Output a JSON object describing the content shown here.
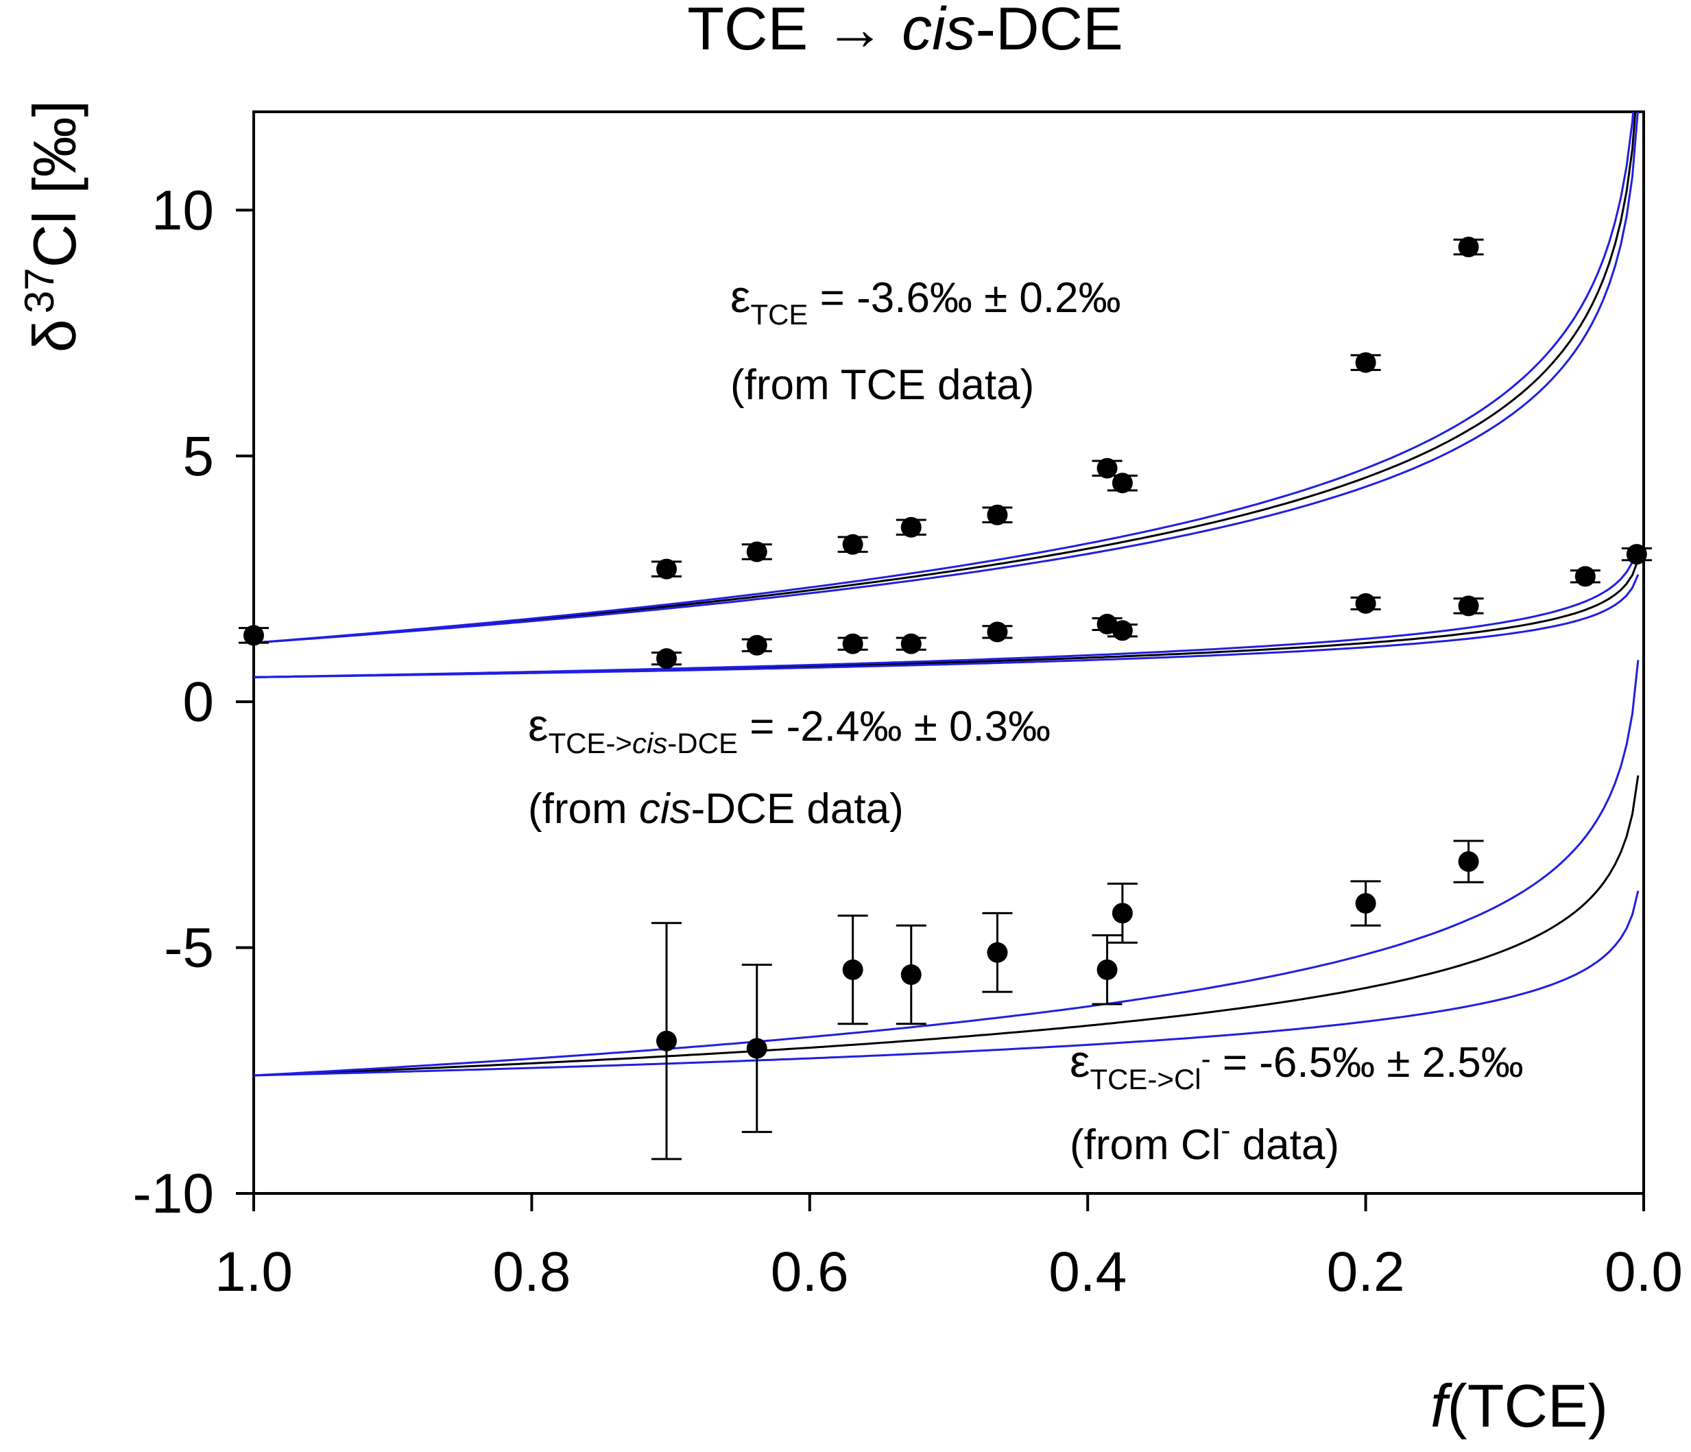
{
  "chart_data": {
    "type": "scatter",
    "title_prefix": "TCE → ",
    "title_italic": "cis",
    "title_suffix": "-DCE",
    "xlabel_italic": "f",
    "xlabel_rest": "(TCE)",
    "ylabel_delta": "δ",
    "ylabel_sup": "37",
    "ylabel_rest": "Cl [‰]",
    "xlim": [
      1.0,
      0.0
    ],
    "ylim": [
      -10,
      12
    ],
    "x_ticks": [
      1.0,
      0.8,
      0.6,
      0.4,
      0.2,
      0.0
    ],
    "x_tick_labels": [
      "1.0",
      "0.8",
      "0.6",
      "0.4",
      "0.2",
      "0.0"
    ],
    "y_ticks": [
      -10,
      -5,
      0,
      5,
      10
    ],
    "y_tick_labels": [
      "-10",
      "-5",
      "0",
      "5",
      "10"
    ],
    "series": [
      {
        "name": "TCE",
        "points": [
          {
            "x": 1.0,
            "y": 1.35,
            "err": 0.15
          },
          {
            "x": 0.703,
            "y": 2.7,
            "err": 0.15
          },
          {
            "x": 0.638,
            "y": 3.05,
            "err": 0.15
          },
          {
            "x": 0.569,
            "y": 3.2,
            "err": 0.15
          },
          {
            "x": 0.527,
            "y": 3.55,
            "err": 0.15
          },
          {
            "x": 0.465,
            "y": 3.8,
            "err": 0.15
          },
          {
            "x": 0.386,
            "y": 4.75,
            "err": 0.15
          },
          {
            "x": 0.375,
            "y": 4.45,
            "err": 0.15
          },
          {
            "x": 0.2,
            "y": 6.9,
            "err": 0.15
          },
          {
            "x": 0.126,
            "y": 9.25,
            "err": 0.15
          }
        ],
        "fit": {
          "d0": 1.2,
          "eps": -3.6,
          "eps_err": 0.2
        }
      },
      {
        "name": "cis-DCE",
        "points": [
          {
            "x": 0.703,
            "y": 0.88,
            "err": 0.12
          },
          {
            "x": 0.638,
            "y": 1.15,
            "err": 0.12
          },
          {
            "x": 0.569,
            "y": 1.18,
            "err": 0.12
          },
          {
            "x": 0.527,
            "y": 1.18,
            "err": 0.12
          },
          {
            "x": 0.465,
            "y": 1.42,
            "err": 0.12
          },
          {
            "x": 0.386,
            "y": 1.58,
            "err": 0.12
          },
          {
            "x": 0.375,
            "y": 1.45,
            "err": 0.12
          },
          {
            "x": 0.2,
            "y": 2.0,
            "err": 0.12
          },
          {
            "x": 0.126,
            "y": 1.95,
            "err": 0.15
          },
          {
            "x": 0.042,
            "y": 2.55,
            "err": 0.12
          },
          {
            "x": 0.005,
            "y": 3.0,
            "err": 0.12
          }
        ],
        "fit": {
          "d0": 1.2,
          "eps": -2.4,
          "eps_err": 0.3
        }
      },
      {
        "name": "Cl-",
        "points": [
          {
            "x": 0.703,
            "y": -6.9,
            "err": 2.4
          },
          {
            "x": 0.638,
            "y": -7.05,
            "err": 1.7
          },
          {
            "x": 0.569,
            "y": -5.45,
            "err": 1.1
          },
          {
            "x": 0.527,
            "y": -5.55,
            "err": 1.0
          },
          {
            "x": 0.465,
            "y": -5.1,
            "err": 0.8
          },
          {
            "x": 0.386,
            "y": -5.45,
            "err": 0.7
          },
          {
            "x": 0.375,
            "y": -4.3,
            "err": 0.6
          },
          {
            "x": 0.2,
            "y": -4.1,
            "err": 0.45
          },
          {
            "x": 0.126,
            "y": -3.25,
            "err": 0.42
          }
        ],
        "fit": {
          "d0": 1.2,
          "eps": -6.5,
          "eps_err": 2.5
        }
      }
    ],
    "annotations": [
      {
        "eps": "ε",
        "sub": "TCE",
        "sub_italic": "",
        "sub_after": "",
        "sup": "",
        "value": " = -3.6‰ ± 0.2‰",
        "line2_prefix": "(from TCE data)",
        "line2_italic": "",
        "line2_sup": "",
        "line2_suffix": ""
      },
      {
        "eps": "ε",
        "sub": "TCE->",
        "sub_italic": "cis",
        "sub_after": "-DCE",
        "sup": "",
        "value": " = -2.4‰ ± 0.3‰",
        "line2_prefix": "(from ",
        "line2_italic": "cis",
        "line2_sup": "",
        "line2_suffix": "-DCE data)"
      },
      {
        "eps": "ε",
        "sub": "TCE->Cl",
        "sub_italic": "",
        "sub_after": "",
        "sup": "-",
        "value": " = -6.5‰ ± 2.5‰",
        "line2_prefix": "(from Cl",
        "line2_italic": "",
        "line2_sup": "-",
        "line2_suffix": " data)"
      }
    ],
    "fit_color": "#000000",
    "ci_color": "#1f1fe0",
    "marker_color": "#000000"
  }
}
